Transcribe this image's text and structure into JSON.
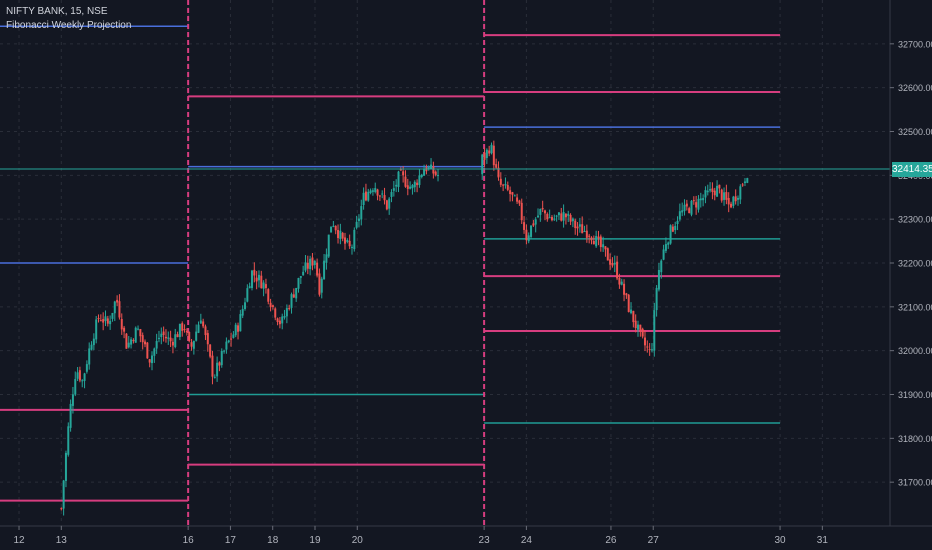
{
  "header": {
    "symbol_line": "NIFTY BANK, 15, NSE",
    "indicator_line": "Fibonacci Weekly Projection"
  },
  "price_badge": "32414.35",
  "colors": {
    "background": "#131722",
    "grid": "#2a2e39",
    "axis_text": "#b2b5be",
    "up_candle": "#26a69a",
    "down_candle": "#ef5350",
    "level_blue": "#4a6fdc",
    "level_pink": "#d63d7f",
    "level_teal": "#1f9c94",
    "current_price_line": "#26a69a"
  },
  "chart_data": {
    "type": "candlestick",
    "title": "NIFTY BANK, 15, NSE",
    "indicator": "Fibonacci Weekly Projection",
    "ylim": [
      31600,
      32800
    ],
    "y_ticks": [
      31700,
      31800,
      31900,
      32000,
      32100,
      32200,
      32300,
      32400,
      32500,
      32600,
      32700
    ],
    "y_tick_labels": [
      "31700.00",
      "31800.00",
      "31900.00",
      "32000.00",
      "32100.00",
      "32200.00",
      "32300.00",
      "32400.00",
      "32500.00",
      "32600.00",
      "32700.00"
    ],
    "x_range": [
      11.55,
      32.6
    ],
    "x_ticks": [
      12,
      13,
      16,
      17,
      18,
      19,
      20,
      23,
      24,
      26,
      27,
      30,
      31
    ],
    "x_tick_labels": [
      "12",
      "13",
      "16",
      "17",
      "18",
      "19",
      "20",
      "23",
      "24",
      "26",
      "27",
      "30",
      "31"
    ],
    "week_separators": [
      16,
      23
    ],
    "current_price": 32414.35,
    "price_path": [
      [
        13.0,
        31640
      ],
      [
        13.05,
        31700
      ],
      [
        13.2,
        31860
      ],
      [
        13.35,
        31960
      ],
      [
        13.5,
        31930
      ],
      [
        13.7,
        32020
      ],
      [
        13.9,
        32080
      ],
      [
        14.1,
        32060
      ],
      [
        14.3,
        32120
      ],
      [
        14.55,
        32010
      ],
      [
        14.8,
        32050
      ],
      [
        15.1,
        31980
      ],
      [
        15.35,
        32040
      ],
      [
        15.6,
        32020
      ],
      [
        15.9,
        32060
      ],
      [
        16.05,
        32000
      ],
      [
        16.3,
        32080
      ],
      [
        16.6,
        31940
      ],
      [
        16.9,
        32010
      ],
      [
        17.2,
        32060
      ],
      [
        17.5,
        32180
      ],
      [
        17.8,
        32150
      ],
      [
        18.0,
        32100
      ],
      [
        18.2,
        32060
      ],
      [
        18.4,
        32110
      ],
      [
        18.7,
        32180
      ],
      [
        19.0,
        32210
      ],
      [
        19.1,
        32140
      ],
      [
        19.4,
        32300
      ],
      [
        19.65,
        32250
      ],
      [
        19.85,
        32230
      ],
      [
        20.15,
        32350
      ],
      [
        20.4,
        32380
      ],
      [
        20.7,
        32330
      ],
      [
        21.0,
        32400
      ],
      [
        21.3,
        32370
      ],
      [
        21.6,
        32420
      ],
      [
        21.9,
        32400
      ],
      [
        23.0,
        32440
      ],
      [
        23.15,
        32470
      ],
      [
        23.35,
        32380
      ],
      [
        23.6,
        32360
      ],
      [
        23.85,
        32320
      ],
      [
        24.0,
        32260
      ],
      [
        24.15,
        32290
      ],
      [
        24.35,
        32320
      ],
      [
        24.6,
        32300
      ],
      [
        24.9,
        32310
      ],
      [
        25.2,
        32280
      ],
      [
        25.5,
        32270
      ],
      [
        25.8,
        32230
      ],
      [
        26.1,
        32190
      ],
      [
        26.45,
        32090
      ],
      [
        26.75,
        32020
      ],
      [
        26.95,
        31990
      ],
      [
        27.1,
        32170
      ],
      [
        27.3,
        32250
      ],
      [
        27.6,
        32310
      ],
      [
        27.9,
        32330
      ],
      [
        28.2,
        32350
      ],
      [
        28.5,
        32370
      ],
      [
        28.8,
        32330
      ],
      [
        29.05,
        32370
      ],
      [
        29.25,
        32414
      ]
    ],
    "levels": [
      {
        "color": "blue",
        "x0": 11.55,
        "x1": 16.0,
        "y": 32740
      },
      {
        "color": "blue",
        "x0": 11.55,
        "x1": 16.0,
        "y": 32200
      },
      {
        "color": "pink",
        "x0": 11.55,
        "x1": 16.0,
        "y": 31865
      },
      {
        "color": "pink",
        "x0": 11.55,
        "x1": 16.0,
        "y": 31658
      },
      {
        "color": "pink",
        "x0": 16.0,
        "x1": 23.0,
        "y": 32580
      },
      {
        "color": "blue",
        "x0": 16.0,
        "x1": 23.0,
        "y": 32420
      },
      {
        "color": "teal",
        "x0": 16.0,
        "x1": 23.0,
        "y": 31900
      },
      {
        "color": "pink",
        "x0": 16.0,
        "x1": 23.0,
        "y": 31740
      },
      {
        "color": "pink",
        "x0": 23.0,
        "x1": 30.0,
        "y": 32720
      },
      {
        "color": "pink",
        "x0": 23.0,
        "x1": 30.0,
        "y": 32590
      },
      {
        "color": "blue",
        "x0": 23.0,
        "x1": 30.0,
        "y": 32510
      },
      {
        "color": "teal",
        "x0": 23.0,
        "x1": 30.0,
        "y": 32255
      },
      {
        "color": "pink",
        "x0": 23.0,
        "x1": 30.0,
        "y": 32170
      },
      {
        "color": "pink",
        "x0": 23.0,
        "x1": 30.0,
        "y": 32045
      },
      {
        "color": "teal",
        "x0": 23.0,
        "x1": 30.0,
        "y": 31835
      }
    ]
  }
}
